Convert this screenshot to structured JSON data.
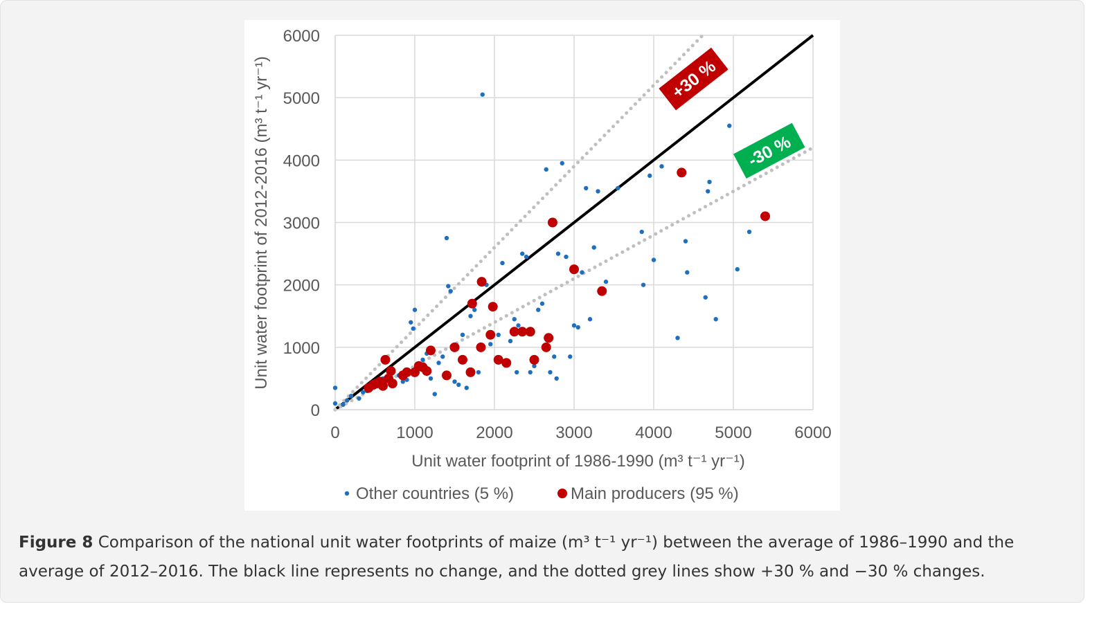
{
  "chart_data": {
    "type": "scatter",
    "xlabel": "Unit water footprint of 1986-1990 (m³ t⁻¹ yr⁻¹)",
    "ylabel": "Unit water footprint of 2012-2016 (m³ t⁻¹ yr⁻¹)",
    "xlim": [
      0,
      6000
    ],
    "ylim": [
      0,
      6000
    ],
    "xticks": [
      "0",
      "1000",
      "2000",
      "3000",
      "4000",
      "5000",
      "6000"
    ],
    "yticks": [
      "0",
      "1000",
      "2000",
      "3000",
      "4000",
      "5000",
      "6000"
    ],
    "grid": true,
    "legend_position": "bottom",
    "reference_lines": [
      {
        "slope": 1.0,
        "style": "solid",
        "color": "#000000"
      },
      {
        "slope": 1.3,
        "style": "dotted",
        "color": "#bfbfbf"
      },
      {
        "slope": 0.7,
        "style": "dotted",
        "color": "#bfbfbf"
      }
    ],
    "annotations": [
      {
        "text": "+30 %",
        "color": "#c00000",
        "x": 4500,
        "y": 5300,
        "angle": -38
      },
      {
        "text": "-30 %",
        "color": "#00b050",
        "x": 5450,
        "y": 4150,
        "angle": -28
      }
    ],
    "series": [
      {
        "name": "Other countries (5 %)",
        "color": "#1f6fc0",
        "points": [
          [
            0,
            350
          ],
          [
            0,
            100
          ],
          [
            100,
            80
          ],
          [
            150,
            150
          ],
          [
            200,
            220
          ],
          [
            300,
            180
          ],
          [
            350,
            280
          ],
          [
            400,
            300
          ],
          [
            500,
            400
          ],
          [
            600,
            500
          ],
          [
            700,
            650
          ],
          [
            800,
            550
          ],
          [
            850,
            450
          ],
          [
            900,
            480
          ],
          [
            950,
            1400
          ],
          [
            980,
            1300
          ],
          [
            1000,
            1600
          ],
          [
            1050,
            700
          ],
          [
            1100,
            800
          ],
          [
            1150,
            900
          ],
          [
            1200,
            500
          ],
          [
            1250,
            250
          ],
          [
            1300,
            750
          ],
          [
            1350,
            850
          ],
          [
            1400,
            2750
          ],
          [
            1420,
            1980
          ],
          [
            1450,
            1900
          ],
          [
            1480,
            1000
          ],
          [
            1500,
            450
          ],
          [
            1550,
            400
          ],
          [
            1600,
            1200
          ],
          [
            1650,
            350
          ],
          [
            1700,
            1500
          ],
          [
            1750,
            1600
          ],
          [
            1800,
            600
          ],
          [
            1850,
            5050
          ],
          [
            1900,
            2000
          ],
          [
            1950,
            1050
          ],
          [
            2050,
            1200
          ],
          [
            2100,
            2350
          ],
          [
            2200,
            1100
          ],
          [
            2250,
            1450
          ],
          [
            2280,
            600
          ],
          [
            2300,
            1350
          ],
          [
            2350,
            2500
          ],
          [
            2400,
            2450
          ],
          [
            2450,
            600
          ],
          [
            2500,
            700
          ],
          [
            2550,
            1600
          ],
          [
            2600,
            1700
          ],
          [
            2650,
            3850
          ],
          [
            2700,
            600
          ],
          [
            2750,
            850
          ],
          [
            2780,
            500
          ],
          [
            2800,
            2500
          ],
          [
            2850,
            3950
          ],
          [
            2900,
            2450
          ],
          [
            2950,
            850
          ],
          [
            3000,
            1350
          ],
          [
            3050,
            1320
          ],
          [
            3100,
            2200
          ],
          [
            3150,
            3550
          ],
          [
            3200,
            1450
          ],
          [
            3250,
            2600
          ],
          [
            3300,
            3500
          ],
          [
            3350,
            1900
          ],
          [
            3400,
            2050
          ],
          [
            3550,
            3550
          ],
          [
            3850,
            2850
          ],
          [
            3870,
            2000
          ],
          [
            3950,
            3750
          ],
          [
            4000,
            2400
          ],
          [
            4100,
            3900
          ],
          [
            4300,
            1150
          ],
          [
            4400,
            2700
          ],
          [
            4420,
            2200
          ],
          [
            4650,
            1800
          ],
          [
            4680,
            3500
          ],
          [
            4700,
            3650
          ],
          [
            4780,
            1450
          ],
          [
            4950,
            4550
          ],
          [
            5050,
            2250
          ],
          [
            5200,
            2850
          ]
        ]
      },
      {
        "name": "Main producers (95 %)",
        "color": "#c00000",
        "points": [
          [
            420,
            350
          ],
          [
            480,
            400
          ],
          [
            520,
            420
          ],
          [
            560,
            450
          ],
          [
            600,
            380
          ],
          [
            630,
            800
          ],
          [
            670,
            500
          ],
          [
            700,
            620
          ],
          [
            720,
            420
          ],
          [
            850,
            550
          ],
          [
            900,
            600
          ],
          [
            1000,
            600
          ],
          [
            1050,
            700
          ],
          [
            1100,
            680
          ],
          [
            1150,
            620
          ],
          [
            1200,
            950
          ],
          [
            1400,
            550
          ],
          [
            1500,
            1000
          ],
          [
            1600,
            800
          ],
          [
            1700,
            600
          ],
          [
            1720,
            1700
          ],
          [
            1830,
            1000
          ],
          [
            1840,
            2050
          ],
          [
            1950,
            1200
          ],
          [
            1980,
            1650
          ],
          [
            2050,
            800
          ],
          [
            2150,
            750
          ],
          [
            2250,
            1250
          ],
          [
            2350,
            1250
          ],
          [
            2450,
            1250
          ],
          [
            2500,
            800
          ],
          [
            2650,
            1000
          ],
          [
            2680,
            1150
          ],
          [
            2730,
            3000
          ],
          [
            3000,
            2250
          ],
          [
            3350,
            1900
          ],
          [
            4350,
            3800
          ],
          [
            5400,
            3100
          ]
        ]
      }
    ]
  },
  "caption": {
    "label": "Figure 8",
    "text": " Comparison of the national unit water footprints of maize (m³ t⁻¹ yr⁻¹) between the average of 1986–1990 and the average of 2012–2016. The black line represents no change, and the dotted grey lines show +30 % and −30 % changes."
  },
  "colors": {
    "panel_bg": "#f3f3f3",
    "grid": "#d9d9d9",
    "other_countries": "#1f6fc0",
    "main_producers": "#c00000",
    "plus30_badge": "#c00000",
    "minus30_badge": "#00b050"
  }
}
